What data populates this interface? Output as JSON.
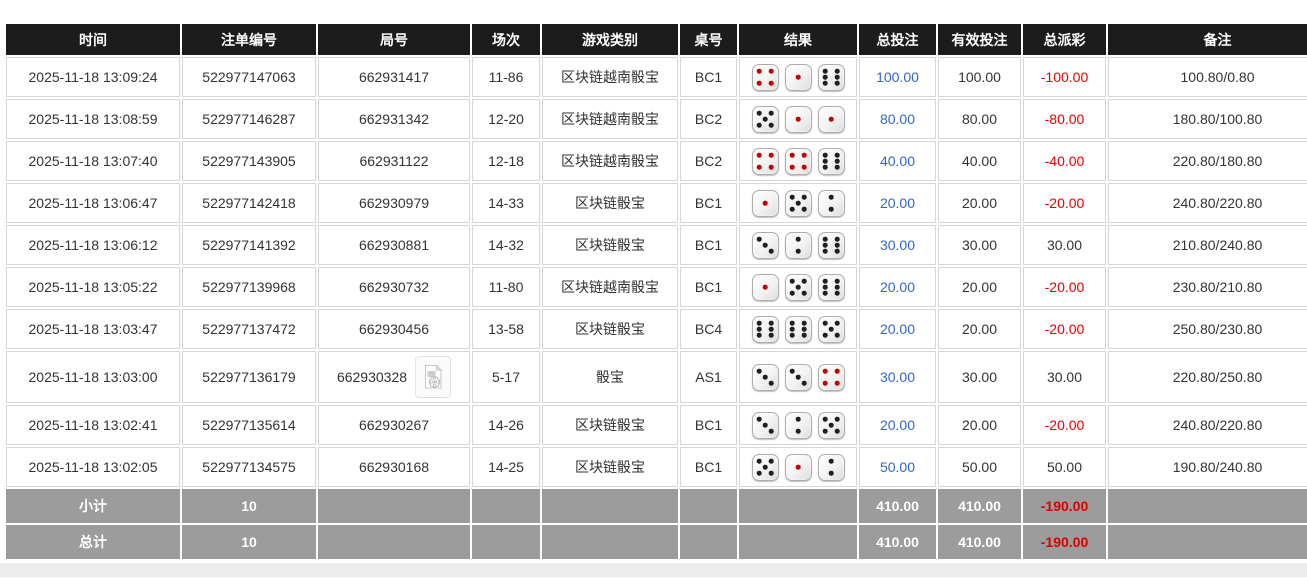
{
  "colors": {
    "header_bg": "#1c1c1c",
    "summary_bg": "#9c9c9c",
    "link_blue": "#3366cc",
    "negative_red": "#e60000"
  },
  "table": {
    "headers": [
      "时间",
      "注单编号",
      "局号",
      "场次",
      "游戏类别",
      "桌号",
      "结果",
      "总投注",
      "有效投注",
      "总派彩",
      "备注"
    ],
    "rows": [
      {
        "time": "2025-11-18 13:09:24",
        "bet_id": "522977147063",
        "round_id": "662931417",
        "session": "11-86",
        "game_type": "区块链越南骰宝",
        "table_no": "BC1",
        "dice": [
          4,
          1,
          6
        ],
        "total_bet": "100.00",
        "valid_bet": "100.00",
        "payout": "-100.00",
        "remark": "100.80/0.80",
        "has_video_icon": false
      },
      {
        "time": "2025-11-18 13:08:59",
        "bet_id": "522977146287",
        "round_id": "662931342",
        "session": "12-20",
        "game_type": "区块链越南骰宝",
        "table_no": "BC2",
        "dice": [
          5,
          1,
          1
        ],
        "total_bet": "80.00",
        "valid_bet": "80.00",
        "payout": "-80.00",
        "remark": "180.80/100.80",
        "has_video_icon": false
      },
      {
        "time": "2025-11-18 13:07:40",
        "bet_id": "522977143905",
        "round_id": "662931122",
        "session": "12-18",
        "game_type": "区块链越南骰宝",
        "table_no": "BC2",
        "dice": [
          4,
          4,
          6
        ],
        "total_bet": "40.00",
        "valid_bet": "40.00",
        "payout": "-40.00",
        "remark": "220.80/180.80",
        "has_video_icon": false
      },
      {
        "time": "2025-11-18 13:06:47",
        "bet_id": "522977142418",
        "round_id": "662930979",
        "session": "14-33",
        "game_type": "区块链骰宝",
        "table_no": "BC1",
        "dice": [
          1,
          5,
          2
        ],
        "total_bet": "20.00",
        "valid_bet": "20.00",
        "payout": "-20.00",
        "remark": "240.80/220.80",
        "has_video_icon": false
      },
      {
        "time": "2025-11-18 13:06:12",
        "bet_id": "522977141392",
        "round_id": "662930881",
        "session": "14-32",
        "game_type": "区块链骰宝",
        "table_no": "BC1",
        "dice": [
          3,
          2,
          6
        ],
        "total_bet": "30.00",
        "valid_bet": "30.00",
        "payout": "30.00",
        "remark": "210.80/240.80",
        "has_video_icon": false
      },
      {
        "time": "2025-11-18 13:05:22",
        "bet_id": "522977139968",
        "round_id": "662930732",
        "session": "11-80",
        "game_type": "区块链越南骰宝",
        "table_no": "BC1",
        "dice": [
          1,
          5,
          6
        ],
        "total_bet": "20.00",
        "valid_bet": "20.00",
        "payout": "-20.00",
        "remark": "230.80/210.80",
        "has_video_icon": false
      },
      {
        "time": "2025-11-18 13:03:47",
        "bet_id": "522977137472",
        "round_id": "662930456",
        "session": "13-58",
        "game_type": "区块链骰宝",
        "table_no": "BC4",
        "dice": [
          6,
          6,
          5
        ],
        "total_bet": "20.00",
        "valid_bet": "20.00",
        "payout": "-20.00",
        "remark": "250.80/230.80",
        "has_video_icon": false
      },
      {
        "time": "2025-11-18 13:03:00",
        "bet_id": "522977136179",
        "round_id": "662930328",
        "session": "5-17",
        "game_type": "骰宝",
        "table_no": "AS1",
        "dice": [
          3,
          3,
          4
        ],
        "total_bet": "30.00",
        "valid_bet": "30.00",
        "payout": "30.00",
        "remark": "220.80/250.80",
        "has_video_icon": true
      },
      {
        "time": "2025-11-18 13:02:41",
        "bet_id": "522977135614",
        "round_id": "662930267",
        "session": "14-26",
        "game_type": "区块链骰宝",
        "table_no": "BC1",
        "dice": [
          3,
          2,
          5
        ],
        "total_bet": "20.00",
        "valid_bet": "20.00",
        "payout": "-20.00",
        "remark": "240.80/220.80",
        "has_video_icon": false
      },
      {
        "time": "2025-11-18 13:02:05",
        "bet_id": "522977134575",
        "round_id": "662930168",
        "session": "14-25",
        "game_type": "区块链骰宝",
        "table_no": "BC1",
        "dice": [
          5,
          1,
          2
        ],
        "total_bet": "50.00",
        "valid_bet": "50.00",
        "payout": "50.00",
        "remark": "190.80/240.80",
        "has_video_icon": false
      }
    ],
    "summary_rows": [
      {
        "label": "小计",
        "count": "10",
        "total_bet": "410.00",
        "valid_bet": "410.00",
        "payout": "-190.00"
      },
      {
        "label": "总计",
        "count": "10",
        "total_bet": "410.00",
        "valid_bet": "410.00",
        "payout": "-190.00"
      }
    ]
  }
}
